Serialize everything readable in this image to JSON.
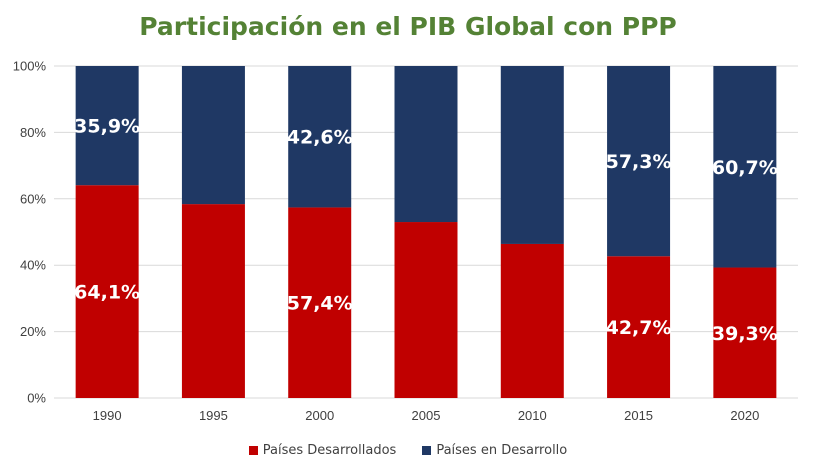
{
  "chart_data": {
    "type": "bar",
    "stacked": true,
    "title": "Participación en el PIB Global con PPP",
    "categories": [
      "1990",
      "1995",
      "2000",
      "2005",
      "2010",
      "2015",
      "2020"
    ],
    "series": [
      {
        "name": "Países Desarrollados",
        "color": "#C00000",
        "values": [
          64.1,
          58.4,
          57.4,
          53.0,
          46.4,
          42.7,
          39.3
        ],
        "labels": [
          "64,1%",
          "",
          "57,4%",
          "",
          "",
          "42,7%",
          "39,3%"
        ]
      },
      {
        "name": "Países en Desarrollo",
        "color": "#1F3864",
        "values": [
          35.9,
          41.6,
          42.6,
          47.0,
          53.6,
          57.3,
          60.7
        ],
        "labels": [
          "35,9%",
          "",
          "42,6%",
          "",
          "",
          "57,3%",
          "60,7%"
        ]
      }
    ],
    "yticks": [
      "0%",
      "20%",
      "40%",
      "60%",
      "80%",
      "100%"
    ],
    "ylim": [
      0,
      100
    ],
    "grid": true,
    "legend_position": "bottom",
    "title_color": "#548235",
    "gridline_color": "#D9D9D9"
  }
}
